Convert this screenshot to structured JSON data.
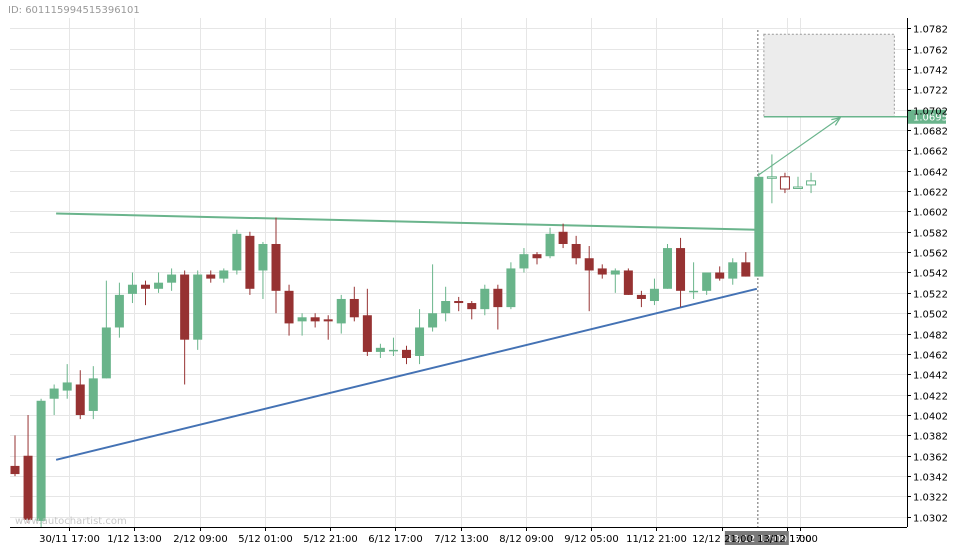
{
  "header": {
    "id_text": "ID: 601115994515396101"
  },
  "watermark": "www.autochartist.com",
  "colors": {
    "bull": "#69b48a",
    "bear": "#963232",
    "resistance": "#6ab48c",
    "support": "#4472b4",
    "grid": "#e6e6e6",
    "axis_text": "#000000",
    "price_badge": "#6ab48c",
    "time_badge": "#7a7a7a"
  },
  "chart_data": {
    "type": "candlestick",
    "title": "",
    "xlabel": "",
    "ylabel": "",
    "ylim": [
      1.0292,
      1.0792
    ],
    "y_ticks": [
      "1.0782",
      "1.0762",
      "1.0742",
      "1.0722",
      "1.0702",
      "1.0682",
      "1.0662",
      "1.0642",
      "1.0622",
      "1.0602",
      "1.0582",
      "1.0562",
      "1.0542",
      "1.0522",
      "1.0502",
      "1.0482",
      "1.0462",
      "1.0442",
      "1.0422",
      "1.0402",
      "1.0382",
      "1.0362",
      "1.0342",
      "1.0322",
      "1.0302"
    ],
    "x_ticks": [
      {
        "index": 2,
        "label": "30/11 17:00"
      },
      {
        "index": 7,
        "label": "1/12 13:00"
      },
      {
        "index": 12,
        "label": "2/12 09:00"
      },
      {
        "index": 17,
        "label": "5/12 01:00"
      },
      {
        "index": 22,
        "label": "5/12 21:00"
      },
      {
        "index": 27,
        "label": "6/12 17:00"
      },
      {
        "index": 32,
        "label": "7/12 13:00"
      },
      {
        "index": 37,
        "label": "8/12 09:00"
      },
      {
        "index": 42,
        "label": "9/12 05:00"
      },
      {
        "index": 47,
        "label": "11/12 21:00"
      },
      {
        "index": 52,
        "label": "12/12 21:00"
      },
      {
        "index": 57,
        "label": "13/12 17:00"
      },
      {
        "index": 58,
        "label": "1:00"
      }
    ],
    "highlight_time_label": "13/12 17:00",
    "candles": [
      {
        "o": 1.0352,
        "h": 1.0382,
        "l": 1.0342,
        "c": 1.0344
      },
      {
        "o": 1.0362,
        "h": 1.0402,
        "l": 1.0296,
        "c": 1.0299
      },
      {
        "o": 1.0298,
        "h": 1.0418,
        "l": 1.0292,
        "c": 1.0416
      },
      {
        "o": 1.0418,
        "h": 1.0432,
        "l": 1.0402,
        "c": 1.0428
      },
      {
        "o": 1.0426,
        "h": 1.0452,
        "l": 1.0418,
        "c": 1.0434
      },
      {
        "o": 1.0432,
        "h": 1.0446,
        "l": 1.0398,
        "c": 1.0402
      },
      {
        "o": 1.0406,
        "h": 1.045,
        "l": 1.0398,
        "c": 1.0438
      },
      {
        "o": 1.0438,
        "h": 1.0534,
        "l": 1.0438,
        "c": 1.0488
      },
      {
        "o": 1.0488,
        "h": 1.0532,
        "l": 1.0478,
        "c": 1.052
      },
      {
        "o": 1.0521,
        "h": 1.0542,
        "l": 1.0512,
        "c": 1.053
      },
      {
        "o": 1.053,
        "h": 1.0534,
        "l": 1.051,
        "c": 1.0526
      },
      {
        "o": 1.0526,
        "h": 1.0542,
        "l": 1.0522,
        "c": 1.0532
      },
      {
        "o": 1.0532,
        "h": 1.0546,
        "l": 1.0524,
        "c": 1.054
      },
      {
        "o": 1.054,
        "h": 1.0544,
        "l": 1.0432,
        "c": 1.0476
      },
      {
        "o": 1.0476,
        "h": 1.0544,
        "l": 1.0466,
        "c": 1.054
      },
      {
        "o": 1.054,
        "h": 1.0544,
        "l": 1.0532,
        "c": 1.0536
      },
      {
        "o": 1.0536,
        "h": 1.0546,
        "l": 1.0532,
        "c": 1.0544
      },
      {
        "o": 1.0544,
        "h": 1.0584,
        "l": 1.054,
        "c": 1.058
      },
      {
        "o": 1.0578,
        "h": 1.0582,
        "l": 1.052,
        "c": 1.0526
      },
      {
        "o": 1.0544,
        "h": 1.0572,
        "l": 1.0516,
        "c": 1.057
      },
      {
        "o": 1.057,
        "h": 1.0596,
        "l": 1.0502,
        "c": 1.0524
      },
      {
        "o": 1.0524,
        "h": 1.053,
        "l": 1.048,
        "c": 1.0492
      },
      {
        "o": 1.0494,
        "h": 1.0502,
        "l": 1.048,
        "c": 1.0498
      },
      {
        "o": 1.0498,
        "h": 1.0502,
        "l": 1.0488,
        "c": 1.0494
      },
      {
        "o": 1.0496,
        "h": 1.05,
        "l": 1.0476,
        "c": 1.0494
      },
      {
        "o": 1.0492,
        "h": 1.052,
        "l": 1.0482,
        "c": 1.0516
      },
      {
        "o": 1.0516,
        "h": 1.0528,
        "l": 1.0494,
        "c": 1.0498
      },
      {
        "o": 1.05,
        "h": 1.0526,
        "l": 1.046,
        "c": 1.0464
      },
      {
        "o": 1.0464,
        "h": 1.0472,
        "l": 1.0458,
        "c": 1.0468
      },
      {
        "o": 1.0466,
        "h": 1.0478,
        "l": 1.046,
        "c": 1.0466
      },
      {
        "o": 1.0466,
        "h": 1.047,
        "l": 1.0452,
        "c": 1.0458
      },
      {
        "o": 1.046,
        "h": 1.0506,
        "l": 1.0452,
        "c": 1.0488
      },
      {
        "o": 1.0488,
        "h": 1.055,
        "l": 1.0484,
        "c": 1.0502
      },
      {
        "o": 1.0502,
        "h": 1.0528,
        "l": 1.0494,
        "c": 1.0514
      },
      {
        "o": 1.0514,
        "h": 1.0518,
        "l": 1.0504,
        "c": 1.0512
      },
      {
        "o": 1.0512,
        "h": 1.0514,
        "l": 1.0496,
        "c": 1.0506
      },
      {
        "o": 1.0506,
        "h": 1.053,
        "l": 1.05,
        "c": 1.0526
      },
      {
        "o": 1.0526,
        "h": 1.053,
        "l": 1.0486,
        "c": 1.0508
      },
      {
        "o": 1.0508,
        "h": 1.0552,
        "l": 1.0506,
        "c": 1.0546
      },
      {
        "o": 1.0546,
        "h": 1.0566,
        "l": 1.0542,
        "c": 1.056
      },
      {
        "o": 1.056,
        "h": 1.0562,
        "l": 1.055,
        "c": 1.0556
      },
      {
        "o": 1.0558,
        "h": 1.0586,
        "l": 1.0556,
        "c": 1.058
      },
      {
        "o": 1.0582,
        "h": 1.059,
        "l": 1.0566,
        "c": 1.057
      },
      {
        "o": 1.057,
        "h": 1.0578,
        "l": 1.055,
        "c": 1.0556
      },
      {
        "o": 1.0556,
        "h": 1.0568,
        "l": 1.0504,
        "c": 1.0544
      },
      {
        "o": 1.0546,
        "h": 1.055,
        "l": 1.0536,
        "c": 1.054
      },
      {
        "o": 1.054,
        "h": 1.0546,
        "l": 1.0522,
        "c": 1.0544
      },
      {
        "o": 1.0544,
        "h": 1.0546,
        "l": 1.052,
        "c": 1.052
      },
      {
        "o": 1.052,
        "h": 1.0524,
        "l": 1.0508,
        "c": 1.0516
      },
      {
        "o": 1.0514,
        "h": 1.0536,
        "l": 1.051,
        "c": 1.0526
      },
      {
        "o": 1.0526,
        "h": 1.057,
        "l": 1.0526,
        "c": 1.0566
      },
      {
        "o": 1.0566,
        "h": 1.0576,
        "l": 1.0508,
        "c": 1.0524
      },
      {
        "o": 1.0524,
        "h": 1.0552,
        "l": 1.0516,
        "c": 1.0524
      },
      {
        "o": 1.0524,
        "h": 1.0542,
        "l": 1.052,
        "c": 1.0542
      },
      {
        "o": 1.0542,
        "h": 1.0548,
        "l": 1.0534,
        "c": 1.0536
      },
      {
        "o": 1.0536,
        "h": 1.0556,
        "l": 1.053,
        "c": 1.0552
      },
      {
        "o": 1.0552,
        "h": 1.0562,
        "l": 1.0538,
        "c": 1.0538
      },
      {
        "o": 1.0538,
        "h": 1.064,
        "l": 1.0538,
        "c": 1.0636
      },
      {
        "o": 1.0636,
        "h": 1.0658,
        "l": 1.061,
        "c": 1.0636
      },
      {
        "o": 1.0636,
        "h": 1.064,
        "l": 1.062,
        "c": 1.0624
      },
      {
        "o": 1.0625,
        "h": 1.0636,
        "l": 1.0624,
        "c": 1.0626
      },
      {
        "o": 1.0628,
        "h": 1.064,
        "l": 1.062,
        "c": 1.0632
      }
    ],
    "resistance_line": {
      "start": {
        "index": 2,
        "price": 1.06
      },
      "end": {
        "index": 57,
        "price": 1.0584
      }
    },
    "support_line": {
      "start": {
        "index": 2,
        "price": 1.0358
      },
      "end": {
        "index": 57,
        "price": 1.0526
      }
    },
    "projection": {
      "arrow_from": {
        "index": 57,
        "price": 1.0638
      },
      "arrow_to": {
        "index": 63,
        "price": 1.0695
      },
      "target_price": "1.0695",
      "zone_top": 1.0776,
      "zone_bottom": 1.0695,
      "zone_start_index": 57,
      "zone_end_index": 67
    }
  }
}
